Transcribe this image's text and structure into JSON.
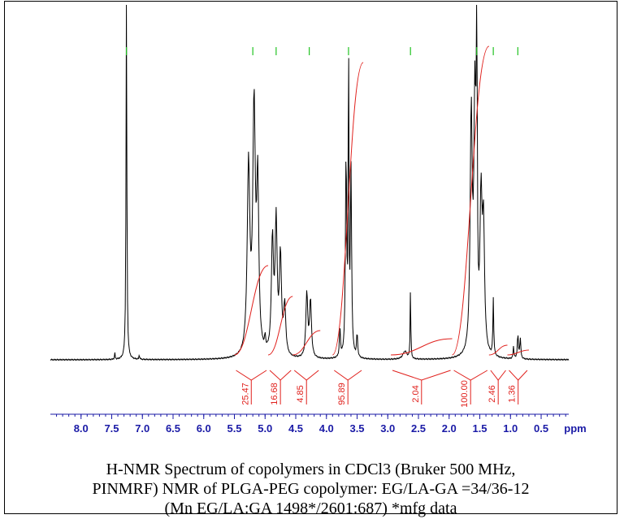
{
  "chart_data": {
    "type": "line",
    "xlabel": "ppm",
    "xlim": [
      8.5,
      0.05
    ],
    "x_ticks": [
      8.0,
      7.5,
      7.0,
      6.5,
      6.0,
      5.5,
      5.0,
      4.5,
      4.0,
      3.5,
      3.0,
      2.5,
      2.0,
      1.5,
      1.0,
      0.5
    ],
    "x_tick_labels": [
      "8.0",
      "7.5",
      "7.0",
      "6.5",
      "6.0",
      "5.5",
      "5.0",
      "4.5",
      "4.0",
      "3.5",
      "3.0",
      "2.5",
      "2.0",
      "1.5",
      "1.0",
      "0.5"
    ],
    "peaks_ppm": [
      7.26,
      5.2,
      4.82,
      4.28,
      3.64,
      2.63,
      1.55,
      1.28,
      0.88
    ],
    "integrals": [
      {
        "label": "25.47",
        "from": 5.5,
        "to": 4.95
      },
      {
        "label": "16.68",
        "from": 4.95,
        "to": 4.55
      },
      {
        "label": "4.85",
        "from": 4.55,
        "to": 4.1
      },
      {
        "label": "95.89",
        "from": 3.9,
        "to": 3.4
      },
      {
        "label": "2.04",
        "from": 2.95,
        "to": 1.95
      },
      {
        "label": "100.00",
        "from": 1.95,
        "to": 1.35
      },
      {
        "label": "2.46",
        "from": 1.35,
        "to": 1.05
      },
      {
        "label": "1.36",
        "from": 1.05,
        "to": 0.7
      }
    ],
    "colors": {
      "spectrum": "#000000",
      "integral": "#e0201c",
      "axis": "#1a1aa6",
      "peak_marker": "#22c322"
    }
  },
  "caption": {
    "line1": "H-NMR Spectrum of copolymers in CDCl3 (Bruker 500 MHz,",
    "line2": "PINMRF) NMR of PLGA-PEG copolymer: EG/LA-GA =34/36-12",
    "line3": "(Mn EG/LA:GA 1498*/2601:687) *mfg data"
  }
}
